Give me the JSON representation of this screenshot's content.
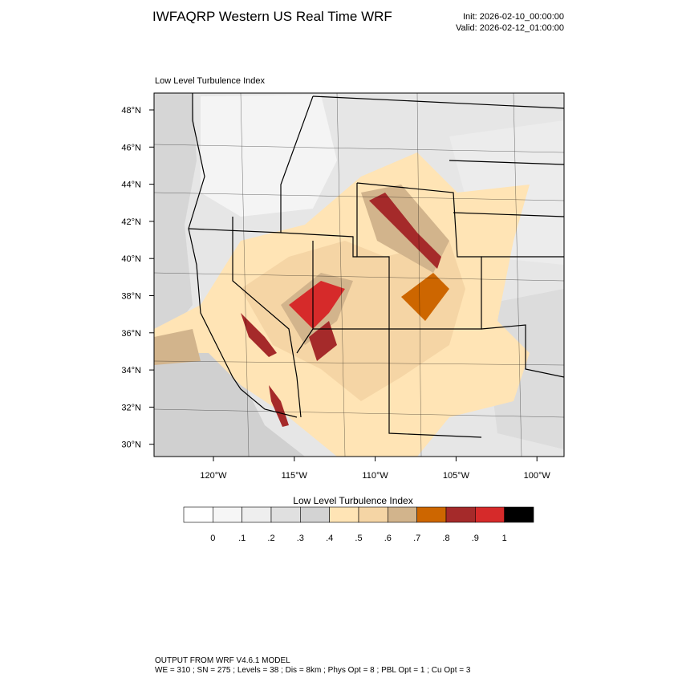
{
  "header": {
    "title": "IWFAQRP Western US Real Time WRF",
    "init": "Init: 2026-02-10_00:00:00",
    "valid": "Valid: 2026-02-12_01:00:00"
  },
  "map": {
    "title": "Low Level Turbulence Index",
    "lat_labels": [
      "48°N",
      "46°N",
      "44°N",
      "42°N",
      "40°N",
      "38°N",
      "36°N",
      "34°N",
      "32°N",
      "30°N"
    ],
    "lon_labels": [
      "120°W",
      "115°W",
      "110°W",
      "105°W",
      "100°W"
    ]
  },
  "colorbar": {
    "title": "Low Level Turbulence Index",
    "labels": [
      "0",
      ".1",
      ".2",
      ".3",
      ".4",
      ".5",
      ".6",
      ".7",
      ".8",
      ".9",
      "1"
    ],
    "colors": [
      "#ffffff",
      "#f6f6f6",
      "#eeeeee",
      "#e0e0e0",
      "#d3d3d3",
      "#ffe4b5",
      "#f5d5a5",
      "#d2b48c",
      "#cd6600",
      "#a52a2a",
      "#d62a2a",
      "#000000"
    ]
  },
  "footer": {
    "line1": "OUTPUT FROM WRF V4.6.1 MODEL",
    "line2": "WE = 310 ; SN = 275 ; Levels = 38 ; Dis = 8km ; Phys Opt = 8 ; PBL Opt = 1 ; Cu Opt = 3"
  }
}
